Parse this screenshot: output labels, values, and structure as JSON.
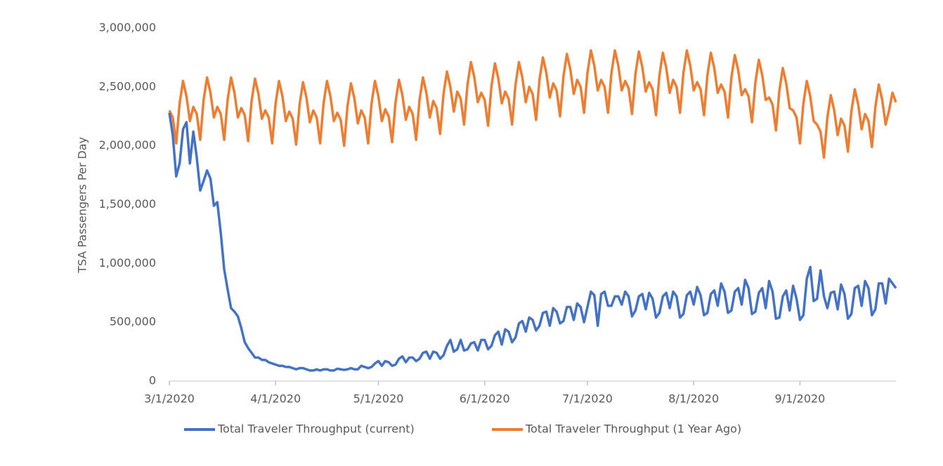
{
  "chart_data": {
    "type": "line",
    "y_label": "TSA Passengers Per Day",
    "x": [
      "3/1/2020",
      "3/2/2020",
      "3/3/2020",
      "3/4/2020",
      "3/5/2020",
      "3/6/2020",
      "3/7/2020",
      "3/8/2020",
      "3/9/2020",
      "3/10/2020",
      "3/11/2020",
      "3/12/2020",
      "3/13/2020",
      "3/14/2020",
      "3/15/2020",
      "3/16/2020",
      "3/17/2020",
      "3/18/2020",
      "3/19/2020",
      "3/20/2020",
      "3/21/2020",
      "3/22/2020",
      "3/23/2020",
      "3/24/2020",
      "3/25/2020",
      "3/26/2020",
      "3/27/2020",
      "3/28/2020",
      "3/29/2020",
      "3/30/2020",
      "3/31/2020",
      "4/1/2020",
      "4/2/2020",
      "4/3/2020",
      "4/4/2020",
      "4/5/2020",
      "4/6/2020",
      "4/7/2020",
      "4/8/2020",
      "4/9/2020",
      "4/10/2020",
      "4/11/2020",
      "4/12/2020",
      "4/13/2020",
      "4/14/2020",
      "4/15/2020",
      "4/16/2020",
      "4/17/2020",
      "4/18/2020",
      "4/19/2020",
      "4/20/2020",
      "4/21/2020",
      "4/22/2020",
      "4/23/2020",
      "4/24/2020",
      "4/25/2020",
      "4/26/2020",
      "4/27/2020",
      "4/28/2020",
      "4/29/2020",
      "4/30/2020",
      "5/1/2020",
      "5/2/2020",
      "5/3/2020",
      "5/4/2020",
      "5/5/2020",
      "5/6/2020",
      "5/7/2020",
      "5/8/2020",
      "5/9/2020",
      "5/10/2020",
      "5/11/2020",
      "5/12/2020",
      "5/13/2020",
      "5/14/2020",
      "5/15/2020",
      "5/16/2020",
      "5/17/2020",
      "5/18/2020",
      "5/19/2020",
      "5/20/2020",
      "5/21/2020",
      "5/22/2020",
      "5/23/2020",
      "5/24/2020",
      "5/25/2020",
      "5/26/2020",
      "5/27/2020",
      "5/28/2020",
      "5/29/2020",
      "5/30/2020",
      "5/31/2020",
      "6/1/2020",
      "6/2/2020",
      "6/3/2020",
      "6/4/2020",
      "6/5/2020",
      "6/6/2020",
      "6/7/2020",
      "6/8/2020",
      "6/9/2020",
      "6/10/2020",
      "6/11/2020",
      "6/12/2020",
      "6/13/2020",
      "6/14/2020",
      "6/15/2020",
      "6/16/2020",
      "6/17/2020",
      "6/18/2020",
      "6/19/2020",
      "6/20/2020",
      "6/21/2020",
      "6/22/2020",
      "6/23/2020",
      "6/24/2020",
      "6/25/2020",
      "6/26/2020",
      "6/27/2020",
      "6/28/2020",
      "6/29/2020",
      "6/30/2020",
      "7/1/2020",
      "7/2/2020",
      "7/3/2020",
      "7/4/2020",
      "7/5/2020",
      "7/6/2020",
      "7/7/2020",
      "7/8/2020",
      "7/9/2020",
      "7/10/2020",
      "7/11/2020",
      "7/12/2020",
      "7/13/2020",
      "7/14/2020",
      "7/15/2020",
      "7/16/2020",
      "7/17/2020",
      "7/18/2020",
      "7/19/2020",
      "7/20/2020",
      "7/21/2020",
      "7/22/2020",
      "7/23/2020",
      "7/24/2020",
      "7/25/2020",
      "7/26/2020",
      "7/27/2020",
      "7/28/2020",
      "7/29/2020",
      "7/30/2020",
      "7/31/2020",
      "8/1/2020",
      "8/2/2020",
      "8/3/2020",
      "8/4/2020",
      "8/5/2020",
      "8/6/2020",
      "8/7/2020",
      "8/8/2020",
      "8/9/2020",
      "8/10/2020",
      "8/11/2020",
      "8/12/2020",
      "8/13/2020",
      "8/14/2020",
      "8/15/2020",
      "8/16/2020",
      "8/17/2020",
      "8/18/2020",
      "8/19/2020",
      "8/20/2020",
      "8/21/2020",
      "8/22/2020",
      "8/23/2020",
      "8/24/2020",
      "8/25/2020",
      "8/26/2020",
      "8/27/2020",
      "8/28/2020",
      "8/29/2020",
      "8/30/2020",
      "8/31/2020",
      "9/1/2020",
      "9/2/2020",
      "9/3/2020",
      "9/4/2020",
      "9/5/2020",
      "9/6/2020",
      "9/7/2020",
      "9/8/2020",
      "9/9/2020",
      "9/10/2020",
      "9/11/2020",
      "9/12/2020",
      "9/13/2020",
      "9/14/2020",
      "9/15/2020",
      "9/16/2020",
      "9/17/2020",
      "9/18/2020",
      "9/19/2020",
      "9/20/2020",
      "9/21/2020",
      "9/22/2020",
      "9/23/2020",
      "9/24/2020",
      "9/25/2020",
      "9/26/2020",
      "9/27/2020",
      "9/28/2020",
      "9/29/2020"
    ],
    "xticks": [
      "3/1/2020",
      "4/1/2020",
      "5/1/2020",
      "6/1/2020",
      "7/1/2020",
      "8/1/2020",
      "9/1/2020"
    ],
    "ylim": [
      0,
      3000000
    ],
    "yticks": [
      0,
      {
        "value": 500000,
        "label": "500,000"
      },
      {
        "value": 1000000,
        "label": "1,000,000"
      },
      {
        "value": 1500000,
        "label": "1,500,000"
      },
      {
        "value": 2000000,
        "label": "2,000,000"
      },
      {
        "value": 2500000,
        "label": "2,500,000"
      },
      {
        "value": 3000000,
        "label": "3,000,000"
      }
    ],
    "legend": "bottom",
    "series": [
      {
        "name": "Total Traveler Throughput (current)",
        "color": "#4472c4",
        "values": [
          2280000,
          2090000,
          1740000,
          1850000,
          2140000,
          2200000,
          1850000,
          2120000,
          1900000,
          1620000,
          1700000,
          1790000,
          1720000,
          1490000,
          1520000,
          1260000,
          950000,
          780000,
          620000,
          590000,
          550000,
          450000,
          330000,
          280000,
          240000,
          200000,
          200000,
          180000,
          180000,
          160000,
          150000,
          140000,
          130000,
          130000,
          120000,
          120000,
          110000,
          100000,
          110000,
          110000,
          100000,
          90000,
          90000,
          100000,
          90000,
          100000,
          100000,
          90000,
          90000,
          105000,
          100000,
          95000,
          100000,
          110000,
          100000,
          100000,
          130000,
          120000,
          110000,
          120000,
          150000,
          170000,
          130000,
          170000,
          160000,
          130000,
          140000,
          190000,
          210000,
          160000,
          200000,
          200000,
          170000,
          190000,
          240000,
          250000,
          190000,
          250000,
          240000,
          190000,
          220000,
          300000,
          350000,
          250000,
          270000,
          350000,
          260000,
          270000,
          320000,
          330000,
          260000,
          350000,
          350000,
          270000,
          300000,
          390000,
          420000,
          310000,
          440000,
          420000,
          330000,
          370000,
          490000,
          510000,
          420000,
          540000,
          520000,
          430000,
          470000,
          580000,
          590000,
          470000,
          620000,
          590000,
          490000,
          510000,
          630000,
          630000,
          520000,
          660000,
          630000,
          500000,
          630000,
          760000,
          730000,
          470000,
          740000,
          760000,
          640000,
          640000,
          720000,
          720000,
          650000,
          760000,
          720000,
          550000,
          600000,
          720000,
          740000,
          610000,
          750000,
          700000,
          540000,
          580000,
          720000,
          750000,
          620000,
          760000,
          720000,
          540000,
          570000,
          730000,
          760000,
          650000,
          800000,
          730000,
          560000,
          580000,
          740000,
          770000,
          640000,
          830000,
          760000,
          580000,
          600000,
          760000,
          790000,
          650000,
          860000,
          790000,
          570000,
          590000,
          750000,
          790000,
          620000,
          850000,
          760000,
          530000,
          540000,
          720000,
          770000,
          600000,
          810000,
          700000,
          520000,
          560000,
          870000,
          970000,
          680000,
          700000,
          940000,
          720000,
          620000,
          750000,
          760000,
          610000,
          820000,
          740000,
          530000,
          570000,
          790000,
          810000,
          640000,
          850000,
          790000,
          560000,
          610000,
          830000,
          830000,
          660000,
          870000,
          830000,
          790000
        ]
      },
      {
        "name": "Total Traveler Throughput (1 Year Ago)",
        "color": "#ed7d31",
        "values": [
          2300000,
          2240000,
          2020000,
          2360000,
          2550000,
          2420000,
          2210000,
          2330000,
          2270000,
          2050000,
          2390000,
          2580000,
          2450000,
          2240000,
          2330000,
          2270000,
          2050000,
          2390000,
          2580000,
          2450000,
          2240000,
          2320000,
          2260000,
          2040000,
          2380000,
          2570000,
          2440000,
          2230000,
          2300000,
          2240000,
          2020000,
          2360000,
          2550000,
          2420000,
          2210000,
          2290000,
          2230000,
          2010000,
          2350000,
          2540000,
          2410000,
          2200000,
          2300000,
          2240000,
          2020000,
          2360000,
          2550000,
          2420000,
          2210000,
          2280000,
          2220000,
          2000000,
          2340000,
          2530000,
          2400000,
          2190000,
          2300000,
          2240000,
          2020000,
          2360000,
          2550000,
          2420000,
          2210000,
          2310000,
          2250000,
          2030000,
          2370000,
          2560000,
          2430000,
          2220000,
          2330000,
          2270000,
          2050000,
          2390000,
          2580000,
          2450000,
          2240000,
          2380000,
          2320000,
          2100000,
          2440000,
          2630000,
          2500000,
          2290000,
          2460000,
          2400000,
          2180000,
          2520000,
          2710000,
          2580000,
          2370000,
          2450000,
          2390000,
          2170000,
          2510000,
          2700000,
          2570000,
          2360000,
          2460000,
          2400000,
          2180000,
          2520000,
          2710000,
          2580000,
          2370000,
          2500000,
          2440000,
          2220000,
          2560000,
          2750000,
          2620000,
          2410000,
          2530000,
          2470000,
          2250000,
          2590000,
          2780000,
          2650000,
          2440000,
          2560000,
          2500000,
          2280000,
          2620000,
          2810000,
          2680000,
          2470000,
          2560000,
          2500000,
          2280000,
          2620000,
          2810000,
          2680000,
          2470000,
          2550000,
          2490000,
          2270000,
          2610000,
          2800000,
          2670000,
          2460000,
          2540000,
          2480000,
          2260000,
          2600000,
          2790000,
          2660000,
          2450000,
          2560000,
          2500000,
          2280000,
          2620000,
          2810000,
          2680000,
          2470000,
          2540000,
          2480000,
          2260000,
          2600000,
          2790000,
          2660000,
          2450000,
          2520000,
          2460000,
          2240000,
          2580000,
          2770000,
          2640000,
          2430000,
          2480000,
          2420000,
          2200000,
          2540000,
          2730000,
          2600000,
          2390000,
          2410000,
          2350000,
          2130000,
          2470000,
          2660000,
          2530000,
          2320000,
          2300000,
          2240000,
          2020000,
          2360000,
          2550000,
          2420000,
          2210000,
          2180000,
          2120000,
          1900000,
          2240000,
          2430000,
          2300000,
          2090000,
          2230000,
          2170000,
          1950000,
          2290000,
          2480000,
          2350000,
          2140000,
          2270000,
          2210000,
          1990000,
          2330000,
          2520000,
          2390000,
          2180000,
          2300000,
          2450000,
          2370000
        ]
      }
    ]
  }
}
